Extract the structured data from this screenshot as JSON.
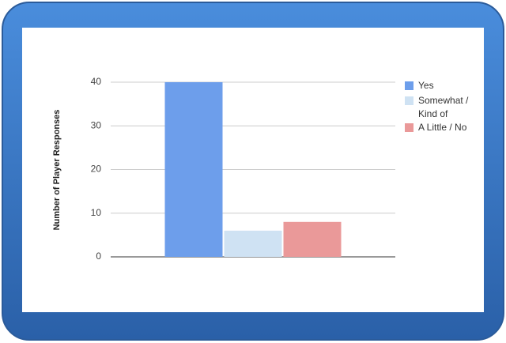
{
  "chart_data": {
    "type": "bar",
    "y_label": "Number of Player Responses",
    "categories": [
      null
    ],
    "series": [
      {
        "name": "Yes",
        "color": "#6d9eeb",
        "values": [
          40
        ]
      },
      {
        "name": "Somewhat / Kind of",
        "color": "#cfe2f3",
        "values": [
          6
        ]
      },
      {
        "name": "A Little / No",
        "color": "#ea9999",
        "values": [
          8
        ]
      }
    ],
    "ylim": [
      0,
      40
    ],
    "yticks": [
      0,
      10,
      20,
      30,
      40
    ],
    "grid": true,
    "legend": "right"
  }
}
